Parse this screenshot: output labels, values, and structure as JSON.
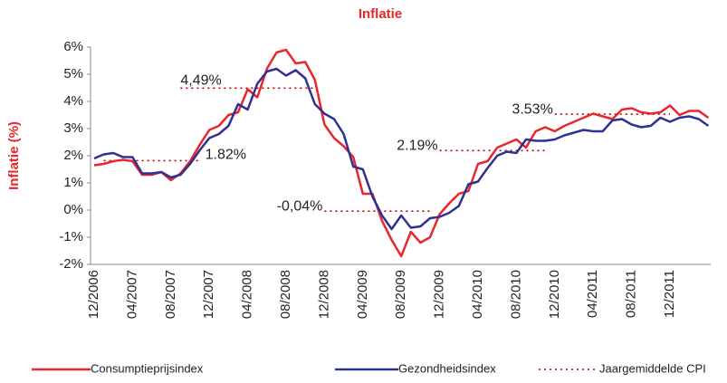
{
  "chart_data": {
    "type": "line",
    "title": "Inflatie",
    "y_label": "Inflatie (%)",
    "categories": [
      "12/2006",
      null,
      null,
      null,
      "04/2007",
      null,
      null,
      null,
      "08/2007",
      null,
      null,
      null,
      "12/2007",
      null,
      null,
      null,
      "04/2008",
      null,
      null,
      null,
      "08/2008",
      null,
      null,
      null,
      "12/2008",
      null,
      null,
      null,
      "04/2009",
      null,
      null,
      null,
      "08/2009",
      null,
      null,
      null,
      "12/2009",
      null,
      null,
      null,
      "04/2010",
      null,
      null,
      null,
      "08/2010",
      null,
      null,
      null,
      "12/2010",
      null,
      null,
      null,
      "04/2011",
      null,
      null,
      null,
      "08/2011",
      null,
      null,
      null,
      "12/2011",
      null,
      null,
      null,
      null
    ],
    "series": [
      {
        "name": "Consumptieprijsindex",
        "color": "#e8262b",
        "values": [
          1.65,
          1.7,
          1.8,
          1.85,
          1.8,
          1.3,
          1.3,
          1.4,
          1.1,
          1.35,
          1.8,
          2.4,
          2.95,
          3.1,
          3.5,
          3.6,
          4.45,
          4.15,
          5.2,
          5.8,
          5.9,
          5.4,
          5.45,
          4.8,
          3.15,
          2.65,
          2.35,
          1.95,
          0.6,
          0.6,
          -0.4,
          -1.1,
          -1.7,
          -0.8,
          -1.2,
          -1.0,
          -0.15,
          0.25,
          0.6,
          0.7,
          1.7,
          1.8,
          2.3,
          2.45,
          2.6,
          2.3,
          2.9,
          3.05,
          2.9,
          3.1,
          3.25,
          3.4,
          3.55,
          3.45,
          3.35,
          3.7,
          3.75,
          3.6,
          3.55,
          3.6,
          3.85,
          3.5,
          3.65,
          3.65,
          3.4
        ]
      },
      {
        "name": "Gezondheidsindex",
        "color": "#2e3192",
        "values": [
          1.9,
          2.05,
          2.1,
          1.95,
          1.95,
          1.35,
          1.35,
          1.4,
          1.2,
          1.3,
          1.7,
          2.2,
          2.65,
          2.8,
          3.1,
          3.9,
          3.7,
          4.65,
          5.1,
          5.2,
          4.95,
          5.15,
          4.85,
          3.9,
          3.55,
          3.35,
          2.8,
          1.6,
          1.5,
          0.5,
          -0.2,
          -0.7,
          -0.2,
          -0.65,
          -0.6,
          -0.3,
          -0.25,
          -0.1,
          0.15,
          0.95,
          1.05,
          1.55,
          2.0,
          2.15,
          2.1,
          2.6,
          2.55,
          2.55,
          2.6,
          2.75,
          2.85,
          2.95,
          2.9,
          2.9,
          3.3,
          3.35,
          3.15,
          3.05,
          3.1,
          3.4,
          3.25,
          3.4,
          3.45,
          3.35,
          3.1
        ]
      }
    ],
    "averages_name": "Jaargemiddelde CPI",
    "averages_color": "#c00000",
    "averages": [
      {
        "value": 1.82,
        "label": "1.82%",
        "start": 1,
        "end": 11
      },
      {
        "value": 4.49,
        "label": "4,49%",
        "start": 9,
        "end": 23
      },
      {
        "value": -0.04,
        "label": "-0,04%",
        "start": 24,
        "end": 35
      },
      {
        "value": 2.19,
        "label": "2.19%",
        "start": 36,
        "end": 47
      },
      {
        "value": 3.53,
        "label": "3.53%",
        "start": 48,
        "end": 60
      }
    ],
    "ylim": [
      -2,
      6
    ],
    "yticks": [
      {
        "value": -2,
        "label": "-2%"
      },
      {
        "value": -1,
        "label": "-1%"
      },
      {
        "value": 0,
        "label": "0%"
      },
      {
        "value": 1,
        "label": "1%"
      },
      {
        "value": 2,
        "label": "2%"
      },
      {
        "value": 3,
        "label": "3%"
      },
      {
        "value": 4,
        "label": "4%"
      },
      {
        "value": 5,
        "label": "5%"
      },
      {
        "value": 6,
        "label": "6%"
      }
    ],
    "legend": "bottom"
  }
}
